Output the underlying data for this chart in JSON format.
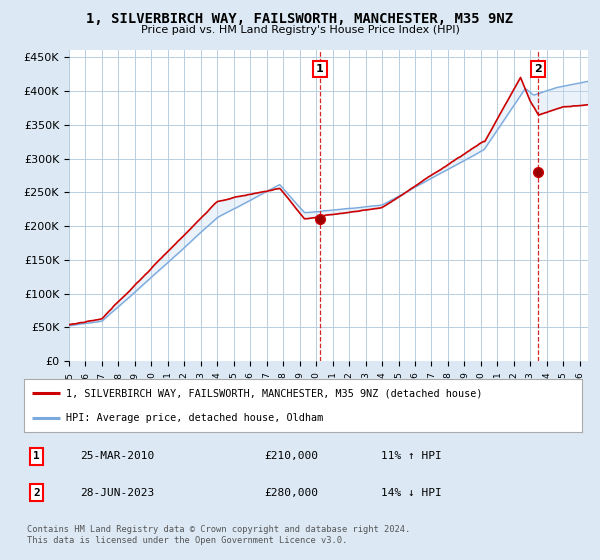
{
  "title": "1, SILVERBIRCH WAY, FAILSWORTH, MANCHESTER, M35 9NZ",
  "subtitle": "Price paid vs. HM Land Registry's House Price Index (HPI)",
  "ylabel_ticks": [
    "£0",
    "£50K",
    "£100K",
    "£150K",
    "£200K",
    "£250K",
    "£300K",
    "£350K",
    "£400K",
    "£450K"
  ],
  "ytick_values": [
    0,
    50000,
    100000,
    150000,
    200000,
    250000,
    300000,
    350000,
    400000,
    450000
  ],
  "ylim": [
    0,
    460000
  ],
  "xlim_start": 1995.0,
  "xlim_end": 2026.5,
  "background_color": "#dce9f5",
  "plot_bg_color": "#ffffff",
  "fill_color": "#c8daf0",
  "grid_color": "#b8cfe0",
  "red_line_color": "#cc0000",
  "blue_line_color": "#7aaadd",
  "dashed_line_color": "#cc0000",
  "marker1_x": 2010.23,
  "marker1_y": 210000,
  "marker1_label": "1",
  "marker2_x": 2023.49,
  "marker2_y": 280000,
  "marker2_label": "2",
  "vline1_x": 2010.23,
  "vline2_x": 2023.49,
  "legend_red_label": "1, SILVERBIRCH WAY, FAILSWORTH, MANCHESTER, M35 9NZ (detached house)",
  "legend_blue_label": "HPI: Average price, detached house, Oldham",
  "table_row1": [
    "1",
    "25-MAR-2010",
    "£210,000",
    "11% ↑ HPI"
  ],
  "table_row2": [
    "2",
    "28-JUN-2023",
    "£280,000",
    "14% ↓ HPI"
  ],
  "footer": "Contains HM Land Registry data © Crown copyright and database right 2024.\nThis data is licensed under the Open Government Licence v3.0."
}
